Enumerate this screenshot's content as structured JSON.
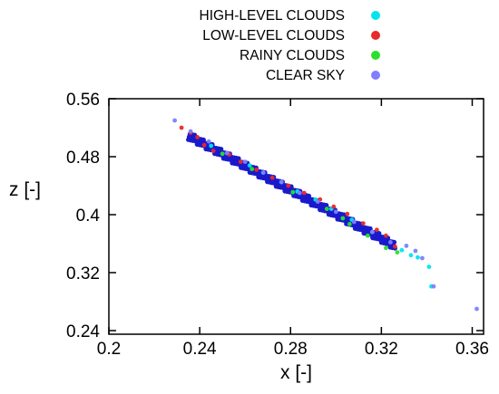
{
  "chart_data": {
    "type": "scatter",
    "title": "",
    "xlabel": "x [-]",
    "ylabel": "z [-]",
    "xlim": [
      0.2,
      0.365
    ],
    "ylim": [
      0.235,
      0.56
    ],
    "x_ticks": [
      "0.2",
      "0.24",
      "0.28",
      "0.32",
      "0.36"
    ],
    "y_ticks": [
      "0.56",
      "0.48",
      "0.4",
      "0.32",
      "0.24"
    ],
    "grid": false,
    "legend_position": "top",
    "series": [
      {
        "name": "HIGH-LEVEL CLOUDS",
        "color": "#00e5ee",
        "points": [
          [
            0.245,
            0.495
          ],
          [
            0.262,
            0.468
          ],
          [
            0.268,
            0.458
          ],
          [
            0.276,
            0.445
          ],
          [
            0.283,
            0.432
          ],
          [
            0.291,
            0.421
          ],
          [
            0.298,
            0.408
          ],
          [
            0.307,
            0.393
          ],
          [
            0.316,
            0.376
          ],
          [
            0.329,
            0.351
          ],
          [
            0.333,
            0.344
          ],
          [
            0.336,
            0.341
          ],
          [
            0.341,
            0.328
          ],
          [
            0.342,
            0.301
          ]
        ]
      },
      {
        "name": "LOW-LEVEL CLOUDS",
        "color": "#e82a2a",
        "points": [
          [
            0.232,
            0.52
          ],
          [
            0.236,
            0.513
          ],
          [
            0.239,
            0.507
          ],
          [
            0.242,
            0.496
          ],
          [
            0.246,
            0.488
          ],
          [
            0.253,
            0.483
          ],
          [
            0.258,
            0.473
          ],
          [
            0.265,
            0.462
          ],
          [
            0.272,
            0.451
          ],
          [
            0.279,
            0.44
          ],
          [
            0.286,
            0.43
          ],
          [
            0.293,
            0.421
          ],
          [
            0.299,
            0.411
          ],
          [
            0.305,
            0.401
          ],
          [
            0.312,
            0.388
          ],
          [
            0.318,
            0.379
          ],
          [
            0.322,
            0.371
          ],
          [
            0.326,
            0.356
          ]
        ]
      },
      {
        "name": "RAINY CLOUDS",
        "color": "#2be02b",
        "points": [
          [
            0.25,
            0.484
          ],
          [
            0.263,
            0.463
          ],
          [
            0.281,
            0.431
          ],
          [
            0.296,
            0.408
          ],
          [
            0.303,
            0.395
          ],
          [
            0.306,
            0.387
          ],
          [
            0.314,
            0.371
          ],
          [
            0.322,
            0.354
          ],
          [
            0.327,
            0.348
          ]
        ]
      },
      {
        "name": "CLEAR SKY",
        "color": "#7f7fff",
        "points": [
          [
            0.229,
            0.53
          ],
          [
            0.236,
            0.515
          ],
          [
            0.244,
            0.501
          ],
          [
            0.252,
            0.485
          ],
          [
            0.26,
            0.473
          ],
          [
            0.268,
            0.458
          ],
          [
            0.276,
            0.445
          ],
          [
            0.284,
            0.43
          ],
          [
            0.292,
            0.418
          ],
          [
            0.3,
            0.404
          ],
          [
            0.308,
            0.39
          ],
          [
            0.316,
            0.376
          ],
          [
            0.324,
            0.362
          ],
          [
            0.331,
            0.357
          ],
          [
            0.335,
            0.35
          ],
          [
            0.338,
            0.34
          ],
          [
            0.343,
            0.301
          ],
          [
            0.362,
            0.27
          ]
        ]
      }
    ],
    "dense_core": {
      "color": "#1a1acc",
      "from": [
        0.235,
        0.509
      ],
      "to": [
        0.326,
        0.357
      ]
    }
  }
}
